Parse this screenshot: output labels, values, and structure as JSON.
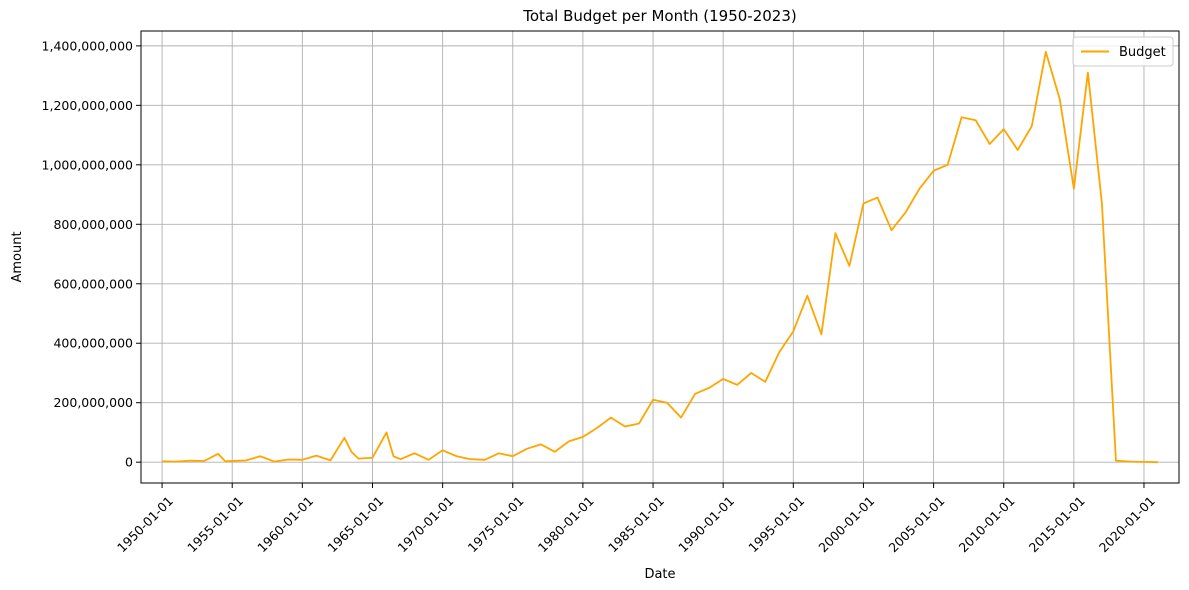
{
  "chart_data": {
    "type": "line",
    "title": "Total Budget per Month (1950-2023)",
    "xlabel": "Date",
    "ylabel": "Amount",
    "x_range": [
      "1948-07-01",
      "2022-07-01"
    ],
    "ylim": [
      -70000000,
      1450000000
    ],
    "grid": true,
    "legend_position": "top-right",
    "x_ticks": [
      "1950-01-01",
      "1955-01-01",
      "1960-01-01",
      "1965-01-01",
      "1970-01-01",
      "1975-01-01",
      "1980-01-01",
      "1985-01-01",
      "1990-01-01",
      "1995-01-01",
      "2000-01-01",
      "2005-01-01",
      "2010-01-01",
      "2015-01-01",
      "2020-01-01"
    ],
    "y_ticks": [
      0,
      200000000,
      400000000,
      600000000,
      800000000,
      1000000000,
      1200000000,
      1400000000
    ],
    "y_tick_labels": [
      "0",
      "200,000,000",
      "400,000,000",
      "600,000,000",
      "800,000,000",
      "1,000,000,000",
      "1,200,000,000",
      "1,400,000,000"
    ],
    "series": [
      {
        "name": "Budget",
        "color": "#ffa500",
        "points": [
          [
            "1950-01-01",
            3000000
          ],
          [
            "1951-01-01",
            2000000
          ],
          [
            "1952-01-01",
            5000000
          ],
          [
            "1953-01-01",
            4000000
          ],
          [
            "1954-01-01",
            28000000
          ],
          [
            "1954-07-01",
            3000000
          ],
          [
            "1956-01-01",
            6000000
          ],
          [
            "1957-01-01",
            20000000
          ],
          [
            "1958-01-01",
            2000000
          ],
          [
            "1959-01-01",
            9000000
          ],
          [
            "1960-01-01",
            8000000
          ],
          [
            "1961-01-01",
            22000000
          ],
          [
            "1962-01-01",
            6000000
          ],
          [
            "1963-01-01",
            82000000
          ],
          [
            "1963-07-01",
            35000000
          ],
          [
            "1964-01-01",
            12000000
          ],
          [
            "1965-01-01",
            15000000
          ],
          [
            "1966-01-01",
            100000000
          ],
          [
            "1966-07-01",
            20000000
          ],
          [
            "1967-01-01",
            10000000
          ],
          [
            "1968-01-01",
            30000000
          ],
          [
            "1969-01-01",
            8000000
          ],
          [
            "1970-01-01",
            40000000
          ],
          [
            "1971-01-01",
            20000000
          ],
          [
            "1972-01-01",
            10000000
          ],
          [
            "1973-01-01",
            8000000
          ],
          [
            "1974-01-01",
            30000000
          ],
          [
            "1975-01-01",
            20000000
          ],
          [
            "1976-01-01",
            45000000
          ],
          [
            "1977-01-01",
            60000000
          ],
          [
            "1978-01-01",
            35000000
          ],
          [
            "1979-01-01",
            70000000
          ],
          [
            "1980-01-01",
            85000000
          ],
          [
            "1981-01-01",
            115000000
          ],
          [
            "1982-01-01",
            150000000
          ],
          [
            "1983-01-01",
            120000000
          ],
          [
            "1984-01-01",
            130000000
          ],
          [
            "1985-01-01",
            210000000
          ],
          [
            "1986-01-01",
            200000000
          ],
          [
            "1987-01-01",
            150000000
          ],
          [
            "1988-01-01",
            230000000
          ],
          [
            "1989-01-01",
            250000000
          ],
          [
            "1990-01-01",
            280000000
          ],
          [
            "1991-01-01",
            260000000
          ],
          [
            "1992-01-01",
            300000000
          ],
          [
            "1993-01-01",
            270000000
          ],
          [
            "1994-01-01",
            370000000
          ],
          [
            "1995-01-01",
            440000000
          ],
          [
            "1996-01-01",
            560000000
          ],
          [
            "1997-01-01",
            430000000
          ],
          [
            "1998-01-01",
            770000000
          ],
          [
            "1999-01-01",
            660000000
          ],
          [
            "2000-01-01",
            870000000
          ],
          [
            "2001-01-01",
            890000000
          ],
          [
            "2002-01-01",
            780000000
          ],
          [
            "2003-01-01",
            840000000
          ],
          [
            "2004-01-01",
            920000000
          ],
          [
            "2005-01-01",
            980000000
          ],
          [
            "2006-01-01",
            1000000000
          ],
          [
            "2007-01-01",
            1160000000
          ],
          [
            "2008-01-01",
            1150000000
          ],
          [
            "2009-01-01",
            1070000000
          ],
          [
            "2010-01-01",
            1120000000
          ],
          [
            "2011-01-01",
            1050000000
          ],
          [
            "2012-01-01",
            1130000000
          ],
          [
            "2013-01-01",
            1380000000
          ],
          [
            "2014-01-01",
            1220000000
          ],
          [
            "2015-01-01",
            920000000
          ],
          [
            "2016-01-01",
            1310000000
          ],
          [
            "2017-01-01",
            870000000
          ],
          [
            "2018-01-01",
            5000000
          ],
          [
            "2019-01-01",
            2000000
          ],
          [
            "2020-01-01",
            1000000
          ],
          [
            "2021-01-01",
            0
          ]
        ]
      }
    ]
  }
}
